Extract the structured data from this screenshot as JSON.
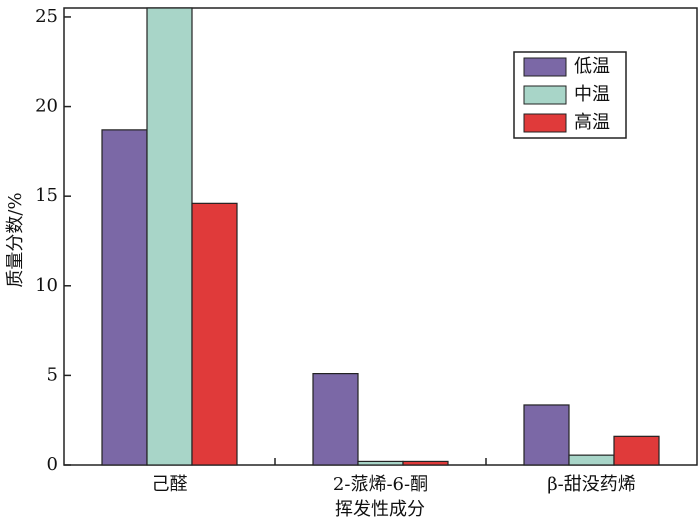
{
  "chart_data": {
    "type": "bar",
    "x_label": "挥发性成分",
    "y_label": "质量分数/%",
    "categories": [
      "己醛",
      "2-蒎烯-6-酮",
      "β-甜没药烯"
    ],
    "series": [
      {
        "name": "低温",
        "color": "#7b68a6",
        "values": [
          18.7,
          5.1,
          3.35
        ]
      },
      {
        "name": "中温",
        "color": "#a8d5c8",
        "values": [
          25.5,
          0.2,
          0.55
        ]
      },
      {
        "name": "高温",
        "color": "#e03a3a",
        "values": [
          14.6,
          0.2,
          1.6
        ]
      }
    ],
    "ylim": [
      0,
      25.5
    ],
    "yticks": [
      0,
      5,
      10,
      15,
      20,
      25
    ],
    "legend": "upper-right"
  }
}
